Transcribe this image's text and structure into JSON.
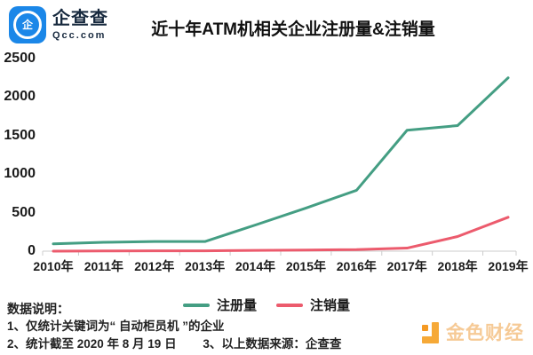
{
  "brand": {
    "name": "企查查",
    "domain": "Qcc.com",
    "logo_glyph": "企",
    "logo_color": "#1B87E8"
  },
  "title": "近十年ATM机相关企业注册量&注销量",
  "chart_data": {
    "type": "line",
    "title": "近十年ATM机相关企业注册量&注销量",
    "categories": [
      "2010年",
      "2011年",
      "2012年",
      "2013年",
      "2014年",
      "2015年",
      "2016年",
      "2017年",
      "2018年",
      "2019年"
    ],
    "series": [
      {
        "name": "注册量",
        "color": "#449E83",
        "values": [
          95,
          115,
          125,
          125,
          340,
          560,
          790,
          1570,
          1630,
          2250
        ]
      },
      {
        "name": "注销量",
        "color": "#EC5B6D",
        "values": [
          0,
          3,
          5,
          5,
          10,
          15,
          20,
          40,
          190,
          440
        ]
      }
    ],
    "ylim": [
      0,
      2500
    ],
    "yticks": [
      0,
      500,
      1000,
      1500,
      2000,
      2500
    ],
    "grid": false,
    "legend_position": "bottom-center",
    "axis_color": "#CCCCCC"
  },
  "notes": {
    "heading": "数据说明：",
    "note1": "1、仅统计关键词为“ 自动柜员机 ”的企业",
    "note2": "2、统计截至 2020 年 8 月 19 日",
    "note3": "3、以上数据来源：企查查"
  },
  "watermark": {
    "text": "金色财经",
    "icon_color": "#F59A23",
    "text_color": "#F6CA96"
  }
}
